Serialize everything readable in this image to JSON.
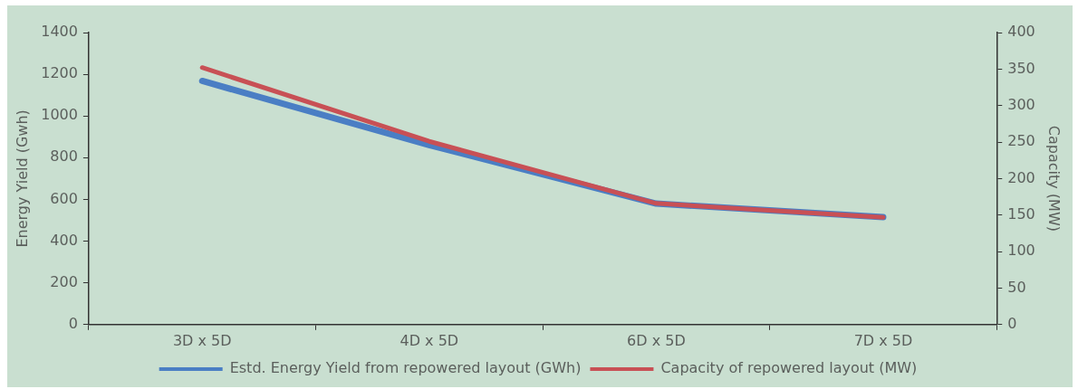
{
  "chart_data": {
    "type": "line",
    "categories": [
      "3D x 5D",
      "4D x 5D",
      "6D x 5D",
      "7D x 5D"
    ],
    "ylabel": "Energy Yield (Gwh)",
    "y2label": "Capacity (MW)",
    "ylim": [
      0,
      1400
    ],
    "yticks": [
      0,
      200,
      400,
      600,
      800,
      1000,
      1200,
      1400
    ],
    "y2lim": [
      0,
      400
    ],
    "y2ticks": [
      0,
      50,
      100,
      150,
      200,
      250,
      300,
      350,
      400
    ],
    "series": [
      {
        "name": "Estd. Energy Yield from repowered layout (GWh)",
        "color": "#4a7ec4",
        "values": [
          1168,
          861,
          580,
          515
        ]
      },
      {
        "name": "Capacity of repowered layout (MW)",
        "color": "#c85055",
        "axis": "y2",
        "values": [
          352,
          251,
          166,
          147
        ]
      }
    ],
    "grid": false,
    "legend": "bottom",
    "marker": "none",
    "line_style": "solid"
  }
}
